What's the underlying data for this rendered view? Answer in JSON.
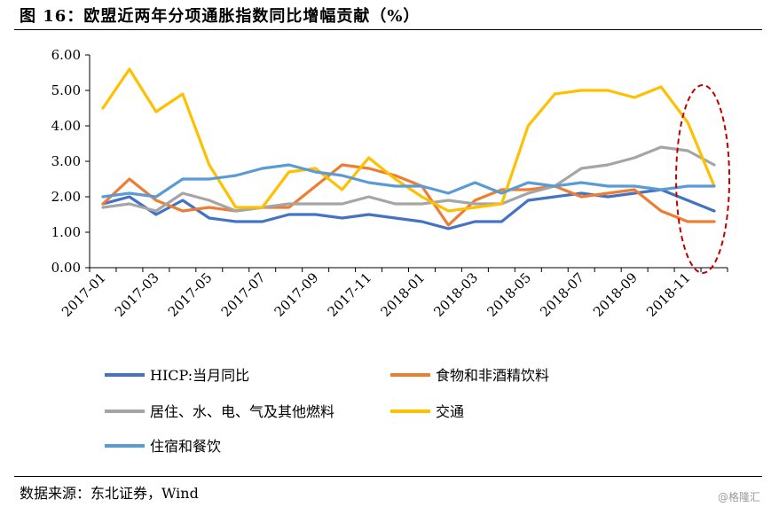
{
  "title": "图 16：欧盟近两年分项通胀指数同比增幅贡献（%）",
  "source": "数据来源：东北证券，Wind",
  "watermark": "@格隆汇",
  "chart_data": {
    "type": "line",
    "ylim": [
      0,
      6
    ],
    "yticks": [
      "0.00",
      "1.00",
      "2.00",
      "3.00",
      "4.00",
      "5.00",
      "6.00"
    ],
    "ytick_values": [
      0,
      1,
      2,
      3,
      4,
      5,
      6
    ],
    "x": [
      "2017-01",
      "2017-02",
      "2017-03",
      "2017-04",
      "2017-05",
      "2017-06",
      "2017-07",
      "2017-08",
      "2017-09",
      "2017-10",
      "2017-11",
      "2017-12",
      "2018-01",
      "2018-02",
      "2018-03",
      "2018-04",
      "2018-05",
      "2018-06",
      "2018-07",
      "2018-08",
      "2018-09",
      "2018-10",
      "2018-11",
      "2018-12"
    ],
    "xtick_labels": [
      "2017-01",
      "2017-03",
      "2017-05",
      "2017-07",
      "2017-09",
      "2017-11",
      "2018-01",
      "2018-03",
      "2018-05",
      "2018-07",
      "2018-09",
      "2018-11"
    ],
    "xtick_index": [
      0,
      2,
      4,
      6,
      8,
      10,
      12,
      14,
      16,
      18,
      20,
      22
    ],
    "grid": false,
    "legend_position": "bottom",
    "annotation": "dashed red ellipse around 2018-11 to 2018-12",
    "series": [
      {
        "name": "HICP:当月同比",
        "color": "#4472C4",
        "values": [
          1.8,
          2.0,
          1.5,
          1.9,
          1.4,
          1.3,
          1.3,
          1.5,
          1.5,
          1.4,
          1.5,
          1.4,
          1.3,
          1.1,
          1.3,
          1.3,
          1.9,
          2.0,
          2.1,
          2.0,
          2.1,
          2.2,
          1.9,
          1.6
        ]
      },
      {
        "name": "食物和非酒精饮料",
        "color": "#ED7D31",
        "values": [
          1.8,
          2.5,
          1.9,
          1.6,
          1.7,
          1.6,
          1.7,
          1.7,
          2.3,
          2.9,
          2.8,
          2.6,
          2.3,
          1.2,
          1.9,
          2.2,
          2.2,
          2.3,
          2.0,
          2.1,
          2.2,
          1.6,
          1.3,
          1.3
        ]
      },
      {
        "name": "居住、水、电、气及其他燃料",
        "color": "#A5A5A5",
        "values": [
          1.7,
          1.8,
          1.6,
          2.1,
          1.9,
          1.6,
          1.7,
          1.8,
          1.8,
          1.8,
          2.0,
          1.8,
          1.8,
          1.9,
          1.8,
          1.8,
          2.1,
          2.3,
          2.8,
          2.9,
          3.1,
          3.4,
          3.3,
          2.9
        ]
      },
      {
        "name": "交通",
        "color": "#FFC000",
        "values": [
          4.5,
          5.6,
          4.4,
          4.9,
          2.9,
          1.7,
          1.7,
          2.7,
          2.8,
          2.2,
          3.1,
          2.5,
          2.0,
          1.6,
          1.7,
          1.8,
          4.0,
          4.9,
          5.0,
          5.0,
          4.8,
          5.1,
          4.1,
          2.3
        ]
      },
      {
        "name": "住宿和餐饮",
        "color": "#5B9BD5",
        "values": [
          2.0,
          2.1,
          2.0,
          2.5,
          2.5,
          2.6,
          2.8,
          2.9,
          2.7,
          2.6,
          2.4,
          2.3,
          2.3,
          2.1,
          2.4,
          2.1,
          2.4,
          2.3,
          2.4,
          2.3,
          2.3,
          2.2,
          2.3,
          2.3
        ]
      }
    ]
  }
}
